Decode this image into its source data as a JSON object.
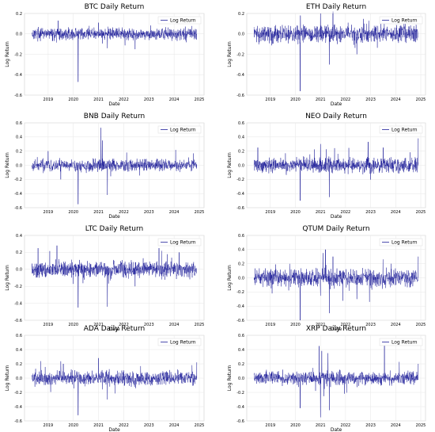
{
  "chart_data": [
    {
      "type": "line",
      "title": "BTC Daily Return",
      "xlabel": "Date",
      "ylabel": "Log Return",
      "legend": "top-right",
      "grid": true,
      "x_ticks": [
        "2019",
        "2020",
        "2021",
        "2022",
        "2023",
        "2024",
        "2025"
      ],
      "ylim": [
        -0.6,
        0.2
      ],
      "y_ticks": [
        "-0.6",
        "-0.4",
        "-0.2",
        "0.0",
        "0.2"
      ],
      "series": [
        {
          "name": "Log Return",
          "color": "#00008b"
        }
      ],
      "x_range": [
        2018.25,
        2025.0
      ],
      "volatility": 0.03,
      "spikes": [
        [
          2020.19,
          -0.47
        ],
        [
          2019.4,
          0.13
        ],
        [
          2021.0,
          0.11
        ],
        [
          2021.35,
          -0.14
        ],
        [
          2022.45,
          -0.15
        ]
      ]
    },
    {
      "type": "line",
      "title": "ETH Daily Return",
      "xlabel": "Date",
      "ylabel": "Log Return",
      "legend": "top-right",
      "grid": true,
      "x_ticks": [
        "2019",
        "2020",
        "2021",
        "2022",
        "2023",
        "2024",
        "2025"
      ],
      "ylim": [
        -0.6,
        0.2
      ],
      "y_ticks": [
        "-0.6",
        "-0.4",
        "-0.2",
        "0.0",
        "0.2"
      ],
      "series": [
        {
          "name": "Log Return",
          "color": "#00008b"
        }
      ],
      "x_range": [
        2018.25,
        2025.0
      ],
      "volatility": 0.045,
      "spikes": [
        [
          2020.19,
          -0.56
        ],
        [
          2020.2,
          0.18
        ],
        [
          2021.0,
          0.2
        ],
        [
          2021.35,
          -0.3
        ],
        [
          2021.5,
          0.22
        ],
        [
          2022.45,
          -0.2
        ]
      ]
    },
    {
      "type": "line",
      "title": "BNB Daily Return",
      "xlabel": "Date",
      "ylabel": "Log Return",
      "legend": "top-right",
      "grid": true,
      "x_ticks": [
        "2019",
        "2020",
        "2021",
        "2022",
        "2023",
        "2024",
        "2025"
      ],
      "ylim": [
        -0.6,
        0.6
      ],
      "y_ticks": [
        "-0.6",
        "-0.4",
        "-0.2",
        "0.0",
        "0.2",
        "0.4",
        "0.6"
      ],
      "series": [
        {
          "name": "Log Return",
          "color": "#00008b"
        }
      ],
      "x_range": [
        2018.25,
        2025.0
      ],
      "volatility": 0.045,
      "spikes": [
        [
          2020.19,
          -0.55
        ],
        [
          2021.1,
          0.53
        ],
        [
          2021.15,
          0.35
        ],
        [
          2021.35,
          -0.42
        ],
        [
          2019.0,
          0.2
        ],
        [
          2019.5,
          -0.2
        ]
      ]
    },
    {
      "type": "line",
      "title": "NEO Daily Return",
      "xlabel": "Date",
      "ylabel": "Log Return",
      "legend": "top-right",
      "grid": true,
      "x_ticks": [
        "2019",
        "2020",
        "2021",
        "2022",
        "2023",
        "2024",
        "2025"
      ],
      "ylim": [
        -0.6,
        0.6
      ],
      "y_ticks": [
        "-0.6",
        "-0.4",
        "-0.2",
        "0.0",
        "0.2",
        "0.4",
        "0.6"
      ],
      "series": [
        {
          "name": "Log Return",
          "color": "#00008b"
        }
      ],
      "x_range": [
        2018.25,
        2025.0
      ],
      "volatility": 0.055,
      "spikes": [
        [
          2020.19,
          -0.5
        ],
        [
          2018.5,
          0.25
        ],
        [
          2021.0,
          0.3
        ],
        [
          2021.35,
          -0.45
        ],
        [
          2022.9,
          0.33
        ],
        [
          2024.9,
          0.38
        ],
        [
          2023.5,
          0.25
        ]
      ]
    },
    {
      "type": "line",
      "title": "LTC Daily Return",
      "xlabel": "Date",
      "ylabel": "Log Return",
      "legend": "top-right",
      "grid": true,
      "x_ticks": [
        "2019",
        "2020",
        "2021",
        "2022",
        "2023",
        "2024",
        "2025"
      ],
      "ylim": [
        -0.6,
        0.4
      ],
      "y_ticks": [
        "-0.6",
        "-0.4",
        "-0.2",
        "0.0",
        "0.2",
        "0.4"
      ],
      "series": [
        {
          "name": "Log Return",
          "color": "#00008b"
        }
      ],
      "x_range": [
        2018.25,
        2025.0
      ],
      "volatility": 0.05,
      "spikes": [
        [
          2020.19,
          -0.45
        ],
        [
          2018.6,
          0.25
        ],
        [
          2019.35,
          0.28
        ],
        [
          2021.35,
          -0.44
        ],
        [
          2022.45,
          -0.2
        ],
        [
          2023.4,
          0.25
        ],
        [
          2024.2,
          0.2
        ]
      ]
    },
    {
      "type": "line",
      "title": "QTUM Daily Return",
      "xlabel": "Date",
      "ylabel": "Log Return",
      "legend": "top-right",
      "grid": true,
      "x_ticks": [
        "2019",
        "2020",
        "2021",
        "2022",
        "2023",
        "2024",
        "2025"
      ],
      "ylim": [
        -0.6,
        0.6
      ],
      "y_ticks": [
        "-0.6",
        "-0.4",
        "-0.2",
        "0.0",
        "0.2",
        "0.4",
        "0.6"
      ],
      "series": [
        {
          "name": "Log Return",
          "color": "#00008b"
        }
      ],
      "x_range": [
        2018.25,
        2025.0
      ],
      "volatility": 0.065,
      "spikes": [
        [
          2020.19,
          -0.6
        ],
        [
          2021.2,
          0.4
        ],
        [
          2021.1,
          0.35
        ],
        [
          2021.35,
          -0.5
        ],
        [
          2021.5,
          0.3
        ],
        [
          2024.9,
          0.3
        ],
        [
          2022.45,
          -0.3
        ]
      ]
    },
    {
      "type": "line",
      "title": "ADA Daily Return",
      "xlabel": "Date",
      "ylabel": "Log Return",
      "legend": "top-right",
      "grid": true,
      "x_ticks": [
        "2019",
        "2020",
        "2021",
        "2022",
        "2023",
        "2024",
        "2025"
      ],
      "ylim": [
        -0.6,
        0.6
      ],
      "y_ticks": [
        "-0.6",
        "-0.4",
        "-0.2",
        "0.0",
        "0.2",
        "0.4",
        "0.6"
      ],
      "series": [
        {
          "name": "Log Return",
          "color": "#00008b"
        }
      ],
      "x_range": [
        2018.25,
        2025.0
      ],
      "volatility": 0.055,
      "spikes": [
        [
          2020.19,
          -0.52
        ],
        [
          2021.0,
          0.28
        ],
        [
          2021.35,
          -0.3
        ],
        [
          2019.6,
          0.2
        ],
        [
          2024.9,
          0.22
        ]
      ]
    },
    {
      "type": "line",
      "title": "XRP Daily Return",
      "xlabel": "Date",
      "ylabel": "Log Return",
      "legend": "top-right",
      "grid": true,
      "x_ticks": [
        "2019",
        "2020",
        "2021",
        "2022",
        "2023",
        "2024",
        "2025"
      ],
      "ylim": [
        -0.6,
        0.6
      ],
      "y_ticks": [
        "-0.6",
        "-0.4",
        "-0.2",
        "0.0",
        "0.2",
        "0.4",
        "0.6"
      ],
      "series": [
        {
          "name": "Log Return",
          "color": "#00008b"
        }
      ],
      "x_range": [
        2018.25,
        2025.0
      ],
      "volatility": 0.05,
      "spikes": [
        [
          2020.19,
          -0.42
        ],
        [
          2020.95,
          0.45
        ],
        [
          2021.0,
          -0.55
        ],
        [
          2021.05,
          0.38
        ],
        [
          2021.3,
          0.35
        ],
        [
          2021.35,
          -0.45
        ],
        [
          2023.55,
          0.55
        ],
        [
          2024.9,
          0.2
        ]
      ]
    }
  ]
}
